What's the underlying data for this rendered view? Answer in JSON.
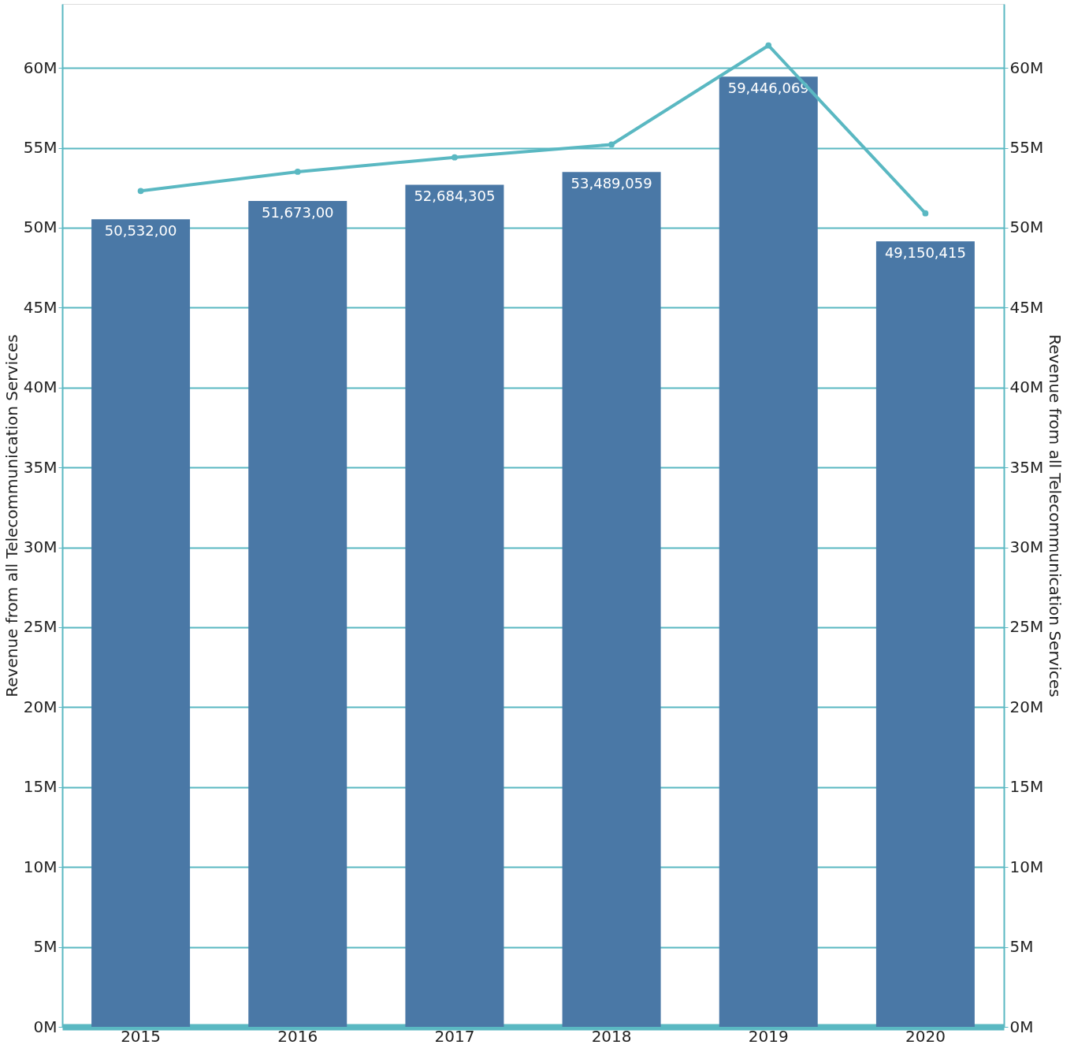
{
  "chart_data": {
    "type": "bar",
    "categories": [
      "2015",
      "2016",
      "2017",
      "2018",
      "2019",
      "2020"
    ],
    "series": [
      {
        "color": "#4a78a6",
        "values": [
          50532000,
          51673000,
          52684305,
          53489059,
          59446069,
          49150415
        ],
        "value_labels": [
          "50,532,00",
          "51,673,00",
          "52,684,305",
          "53,489,059",
          "59,446,069",
          "49,150,415"
        ]
      },
      {
        "type": "line",
        "axis": "y2",
        "color": "#5ab8c2",
        "marker": "circle",
        "values": [
          52300000,
          53500000,
          54400000,
          55200000,
          61400000,
          50900000
        ]
      }
    ],
    "ylabel": "Revenue from all Telecommunication Services",
    "y2label": "Revenue from all Telecommunication Services",
    "ylim": [
      0,
      64000000
    ],
    "y2lim": [
      0,
      64000000
    ],
    "yticks": [
      {
        "value": 0,
        "label": "0M"
      },
      {
        "value": 5000000,
        "label": "5M"
      },
      {
        "value": 10000000,
        "label": "10M"
      },
      {
        "value": 15000000,
        "label": "15M"
      },
      {
        "value": 20000000,
        "label": "20M"
      },
      {
        "value": 25000000,
        "label": "25M"
      },
      {
        "value": 30000000,
        "label": "30M"
      },
      {
        "value": 35000000,
        "label": "35M"
      },
      {
        "value": 40000000,
        "label": "40M"
      },
      {
        "value": 45000000,
        "label": "45M"
      },
      {
        "value": 50000000,
        "label": "50M"
      },
      {
        "value": 55000000,
        "label": "55M"
      },
      {
        "value": 60000000,
        "label": "60M"
      }
    ],
    "y2ticks": [
      {
        "value": 0,
        "label": "0M"
      },
      {
        "value": 5000000,
        "label": "5M"
      },
      {
        "value": 10000000,
        "label": "10M"
      },
      {
        "value": 15000000,
        "label": "15M"
      },
      {
        "value": 20000000,
        "label": "20M"
      },
      {
        "value": 25000000,
        "label": "25M"
      },
      {
        "value": 30000000,
        "label": "30M"
      },
      {
        "value": 35000000,
        "label": "35M"
      },
      {
        "value": 40000000,
        "label": "40M"
      },
      {
        "value": 45000000,
        "label": "45M"
      },
      {
        "value": 50000000,
        "label": "50M"
      },
      {
        "value": 55000000,
        "label": "55M"
      },
      {
        "value": 60000000,
        "label": "60M"
      }
    ],
    "grid": "y"
  }
}
